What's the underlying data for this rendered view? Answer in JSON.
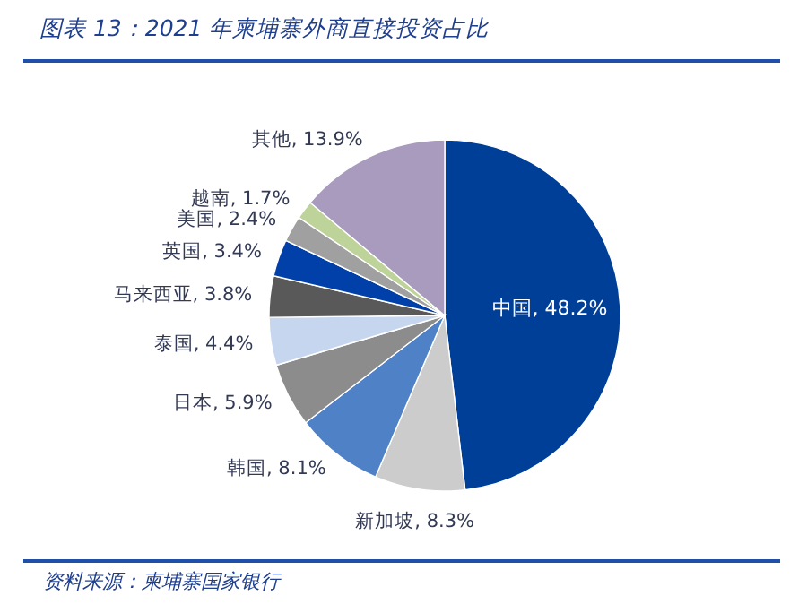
{
  "chart_data": {
    "type": "pie",
    "title": "图表 13：2021 年柬埔寨外商直接投资占比",
    "categories": [
      "中国",
      "新加坡",
      "韩国",
      "日本",
      "泰国",
      "马来西亚",
      "英国",
      "美国",
      "越南",
      "其他"
    ],
    "values": [
      48.2,
      8.3,
      8.1,
      5.9,
      4.4,
      3.8,
      3.4,
      2.4,
      1.7,
      13.9
    ],
    "value_labels": [
      "48.2%",
      "8.3%",
      "8.1%",
      "5.9%",
      "4.4%",
      "3.8%",
      "3.4%",
      "2.4%",
      "1.7%",
      "13.9%"
    ],
    "colors": [
      "#003f98",
      "#cccccc",
      "#4f81c7",
      "#8c8c8c",
      "#c5d6ee",
      "#595959",
      "#0040a8",
      "#a0a0a0",
      "#bdd39a",
      "#a99bbd"
    ],
    "annotations": [
      "资料来源：柬埔寨国家银行"
    ]
  }
}
